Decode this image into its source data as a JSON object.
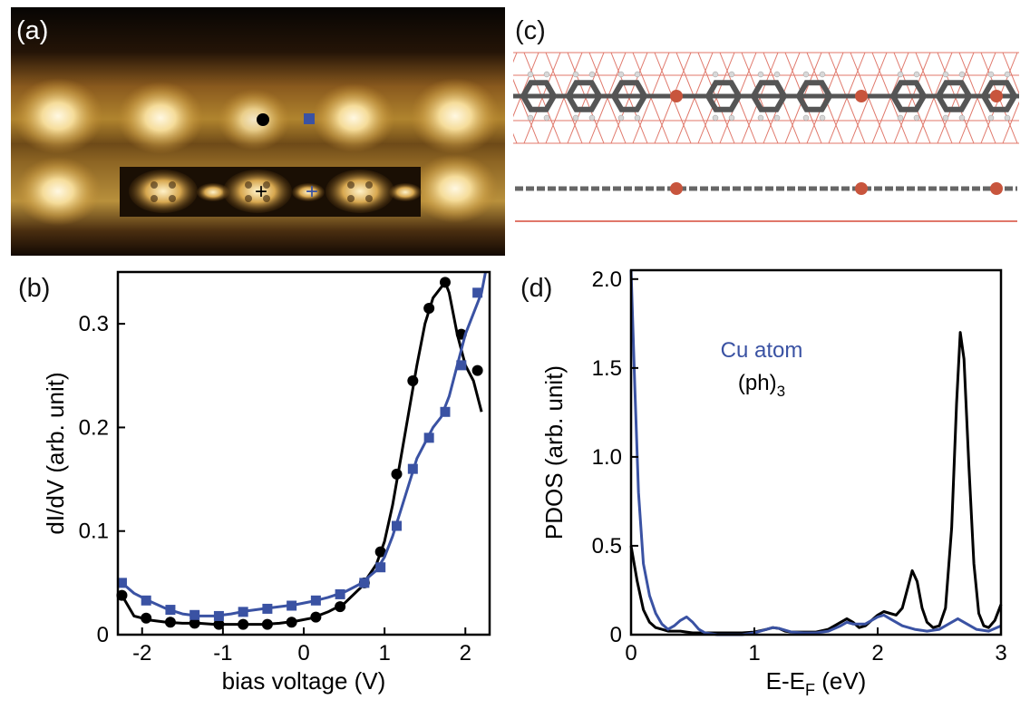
{
  "panels": {
    "a": {
      "label": "(a)"
    },
    "b": {
      "label": "(b)"
    },
    "c": {
      "label": "(c)"
    },
    "d": {
      "label": "(d)"
    }
  },
  "colors": {
    "black_series": "#000000",
    "blue_series": "#3a52a3",
    "copper_atom": "#c8553d",
    "carbon_atom": "#555555",
    "hydrogen_atom": "#d8d8d8",
    "substrate_lattice": "#e0776a"
  },
  "chart_data": [
    {
      "type": "line",
      "panel": "b",
      "xlabel": "bias voltage (V)",
      "ylabel": "dI/dV (arb. unit)",
      "xlim": [
        -2.3,
        2.3
      ],
      "ylim": [
        0,
        0.35
      ],
      "xticks": [
        -2,
        -1,
        0,
        1,
        2
      ],
      "yticks": [
        0,
        0.1,
        0.2,
        0.3
      ],
      "grid": false,
      "series": [
        {
          "color": "#000000",
          "marker": "circle",
          "x": [
            -2.25,
            -2.1,
            -1.9,
            -1.7,
            -1.5,
            -1.3,
            -1.1,
            -0.9,
            -0.7,
            -0.5,
            -0.3,
            -0.1,
            0.1,
            0.3,
            0.5,
            0.7,
            0.9,
            1.0,
            1.1,
            1.2,
            1.3,
            1.4,
            1.5,
            1.6,
            1.7,
            1.75,
            1.8,
            1.9,
            2.0,
            2.1,
            2.2
          ],
          "y": [
            0.038,
            0.018,
            0.014,
            0.012,
            0.011,
            0.011,
            0.01,
            0.01,
            0.01,
            0.01,
            0.011,
            0.013,
            0.016,
            0.022,
            0.03,
            0.045,
            0.068,
            0.09,
            0.125,
            0.17,
            0.215,
            0.26,
            0.3,
            0.325,
            0.335,
            0.34,
            0.33,
            0.29,
            0.26,
            0.245,
            0.215
          ],
          "marker_x": [
            -2.25,
            -1.95,
            -1.65,
            -1.35,
            -1.05,
            -0.75,
            -0.45,
            -0.15,
            0.15,
            0.45,
            0.75,
            0.95,
            1.15,
            1.35,
            1.55,
            1.75,
            1.95,
            2.15
          ],
          "marker_y": [
            0.038,
            0.016,
            0.012,
            0.011,
            0.01,
            0.01,
            0.01,
            0.012,
            0.017,
            0.027,
            0.05,
            0.08,
            0.155,
            0.245,
            0.315,
            0.34,
            0.29,
            0.255
          ]
        },
        {
          "color": "#3a52a3",
          "marker": "square",
          "x": [
            -2.25,
            -2.1,
            -1.9,
            -1.7,
            -1.5,
            -1.3,
            -1.1,
            -0.9,
            -0.7,
            -0.5,
            -0.3,
            -0.1,
            0.1,
            0.3,
            0.5,
            0.7,
            0.9,
            1.0,
            1.1,
            1.2,
            1.3,
            1.4,
            1.5,
            1.6,
            1.7,
            1.8,
            1.9,
            2.0,
            2.1,
            2.2,
            2.25
          ],
          "y": [
            0.05,
            0.04,
            0.032,
            0.025,
            0.02,
            0.018,
            0.018,
            0.02,
            0.023,
            0.025,
            0.027,
            0.029,
            0.032,
            0.036,
            0.041,
            0.049,
            0.062,
            0.075,
            0.095,
            0.12,
            0.145,
            0.17,
            0.185,
            0.2,
            0.21,
            0.23,
            0.26,
            0.29,
            0.31,
            0.33,
            0.35
          ],
          "marker_x": [
            -2.25,
            -1.95,
            -1.65,
            -1.35,
            -1.05,
            -0.75,
            -0.45,
            -0.15,
            0.15,
            0.45,
            0.75,
            0.95,
            1.15,
            1.35,
            1.55,
            1.75,
            1.95,
            2.15
          ],
          "marker_y": [
            0.05,
            0.033,
            0.024,
            0.019,
            0.018,
            0.022,
            0.025,
            0.028,
            0.033,
            0.039,
            0.05,
            0.065,
            0.105,
            0.16,
            0.19,
            0.215,
            0.26,
            0.33
          ]
        }
      ]
    },
    {
      "type": "line",
      "panel": "d",
      "xlabel": "E-E",
      "xlabel_subscript": "F",
      "xlabel_unit": " (eV)",
      "ylabel": "PDOS (arb. unit)",
      "xlim": [
        0,
        3
      ],
      "ylim": [
        0,
        2.05
      ],
      "xticks": [
        0,
        1,
        2,
        3
      ],
      "yticks": [
        0,
        0.5,
        1.0,
        1.5,
        2.0
      ],
      "ytick_labels": [
        "0",
        "0.5",
        "1.0",
        "1.5",
        "2.0"
      ],
      "grid": false,
      "legend": {
        "placement": "top-right",
        "entries": [
          {
            "text": "Cu atom",
            "color": "#3a52a3"
          },
          {
            "text": "(ph)",
            "subscript": "3",
            "color": "#000000"
          }
        ]
      },
      "series": [
        {
          "color": "#000000",
          "x": [
            0.0,
            0.05,
            0.1,
            0.15,
            0.2,
            0.25,
            0.3,
            0.35,
            0.4,
            0.45,
            0.5,
            0.55,
            0.6,
            0.7,
            0.8,
            0.9,
            1.0,
            1.1,
            1.15,
            1.2,
            1.25,
            1.3,
            1.4,
            1.5,
            1.6,
            1.7,
            1.75,
            1.8,
            1.85,
            1.9,
            1.95,
            2.0,
            2.05,
            2.1,
            2.15,
            2.2,
            2.25,
            2.28,
            2.32,
            2.36,
            2.4,
            2.45,
            2.5,
            2.55,
            2.6,
            2.64,
            2.67,
            2.7,
            2.74,
            2.78,
            2.82,
            2.86,
            2.9,
            2.95,
            3.0
          ],
          "y": [
            0.5,
            0.3,
            0.14,
            0.07,
            0.04,
            0.03,
            0.02,
            0.02,
            0.02,
            0.015,
            0.01,
            0.01,
            0.01,
            0.01,
            0.01,
            0.01,
            0.015,
            0.03,
            0.04,
            0.035,
            0.02,
            0.015,
            0.015,
            0.015,
            0.03,
            0.07,
            0.09,
            0.07,
            0.04,
            0.05,
            0.08,
            0.11,
            0.13,
            0.12,
            0.11,
            0.15,
            0.28,
            0.36,
            0.3,
            0.15,
            0.07,
            0.04,
            0.05,
            0.15,
            0.6,
            1.3,
            1.7,
            1.55,
            0.95,
            0.4,
            0.12,
            0.05,
            0.04,
            0.08,
            0.17
          ]
        },
        {
          "color": "#3a52a3",
          "x": [
            0.0,
            0.03,
            0.06,
            0.1,
            0.15,
            0.2,
            0.25,
            0.3,
            0.35,
            0.4,
            0.45,
            0.5,
            0.55,
            0.6,
            0.7,
            0.8,
            0.9,
            1.0,
            1.1,
            1.15,
            1.2,
            1.3,
            1.4,
            1.5,
            1.6,
            1.7,
            1.75,
            1.8,
            1.9,
            2.0,
            2.05,
            2.1,
            2.2,
            2.3,
            2.4,
            2.5,
            2.6,
            2.65,
            2.7,
            2.8,
            2.9,
            3.0
          ],
          "y": [
            2.05,
            1.4,
            0.8,
            0.4,
            0.22,
            0.12,
            0.06,
            0.03,
            0.05,
            0.08,
            0.1,
            0.07,
            0.03,
            0.01,
            0.0,
            0.0,
            0.0,
            0.01,
            0.03,
            0.04,
            0.035,
            0.015,
            0.01,
            0.01,
            0.02,
            0.05,
            0.07,
            0.06,
            0.06,
            0.1,
            0.11,
            0.09,
            0.05,
            0.03,
            0.02,
            0.03,
            0.07,
            0.09,
            0.07,
            0.03,
            0.02,
            0.05
          ]
        }
      ]
    }
  ]
}
